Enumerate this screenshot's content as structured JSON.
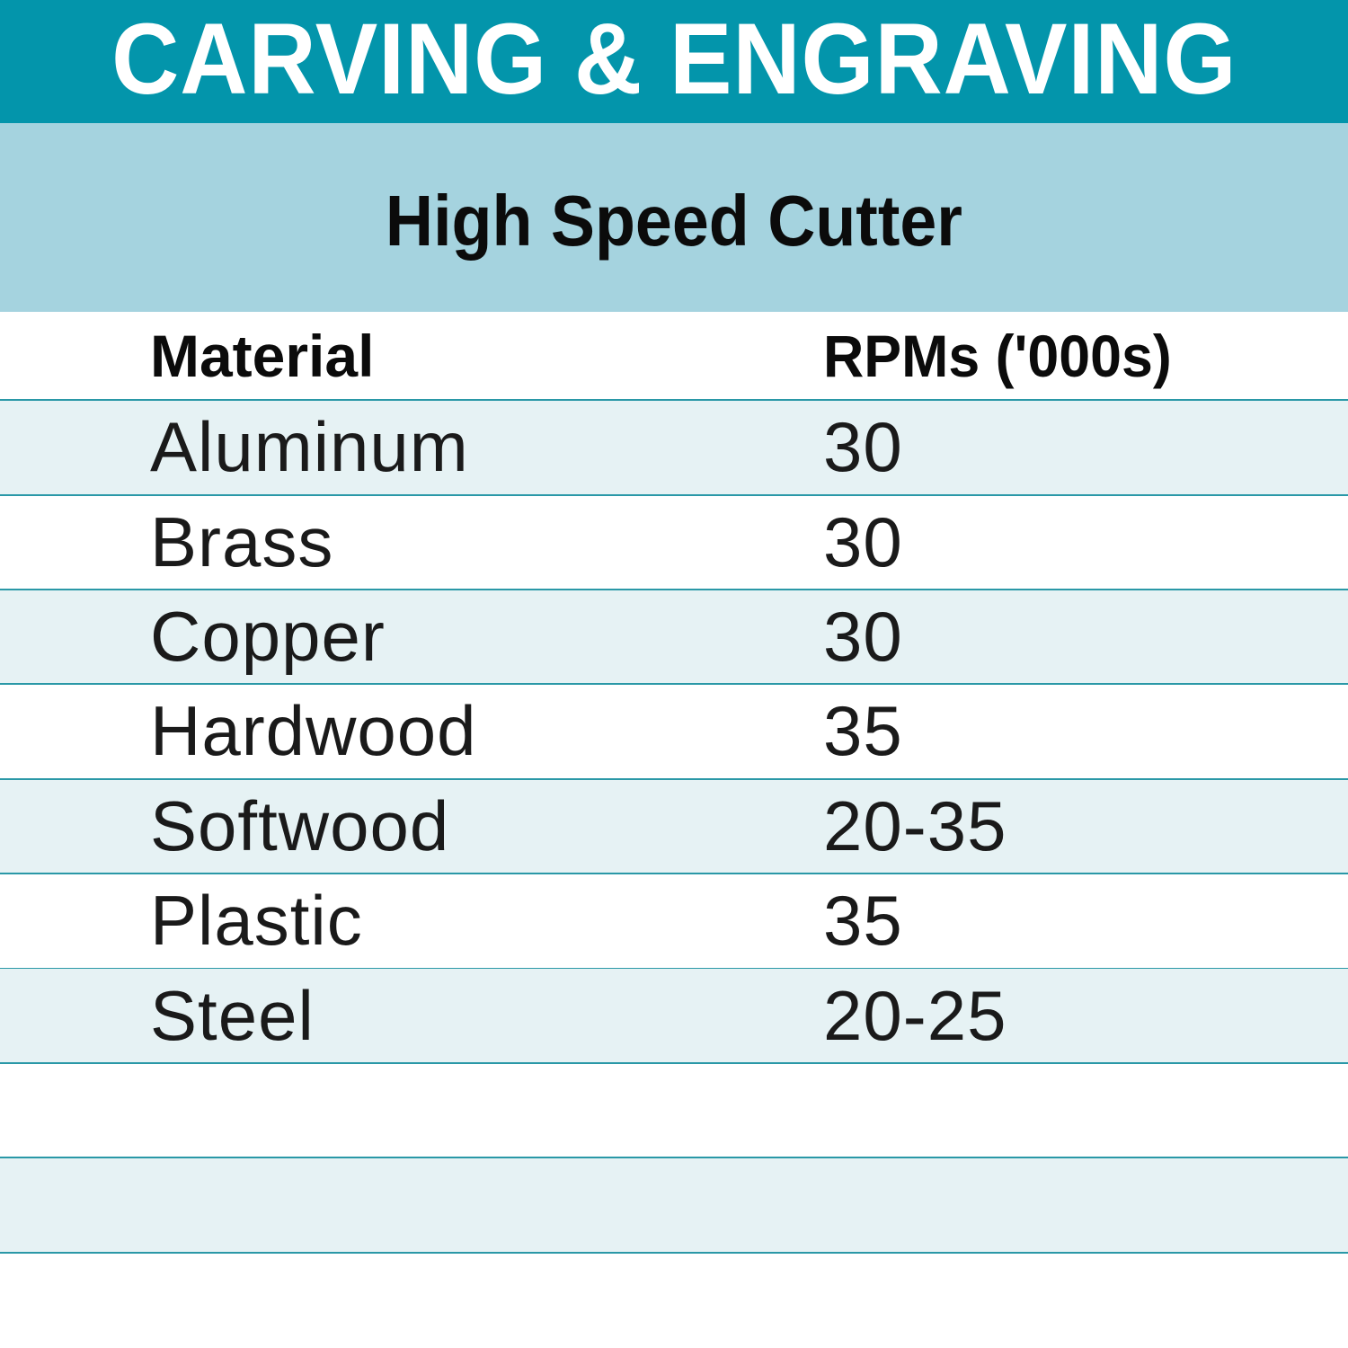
{
  "title": "CARVING & ENGRAVING",
  "subtitle": "High Speed Cutter",
  "colors": {
    "banner": "#0395ab",
    "subheader": "#a5d3df",
    "row_alt": "#e6f2f4",
    "rule": "#2a98a7"
  },
  "table": {
    "headers": [
      "Material",
      "RPMs ('000s)"
    ],
    "rows": [
      {
        "material": "Aluminum",
        "rpm": "30"
      },
      {
        "material": "Brass",
        "rpm": "30"
      },
      {
        "material": "Copper",
        "rpm": "30"
      },
      {
        "material": "Hardwood",
        "rpm": "35"
      },
      {
        "material": "Softwood",
        "rpm": "20-35"
      },
      {
        "material": "Plastic",
        "rpm": "35"
      },
      {
        "material": "Steel",
        "rpm": "20-25"
      },
      {
        "material": "",
        "rpm": ""
      },
      {
        "material": "",
        "rpm": ""
      }
    ]
  }
}
